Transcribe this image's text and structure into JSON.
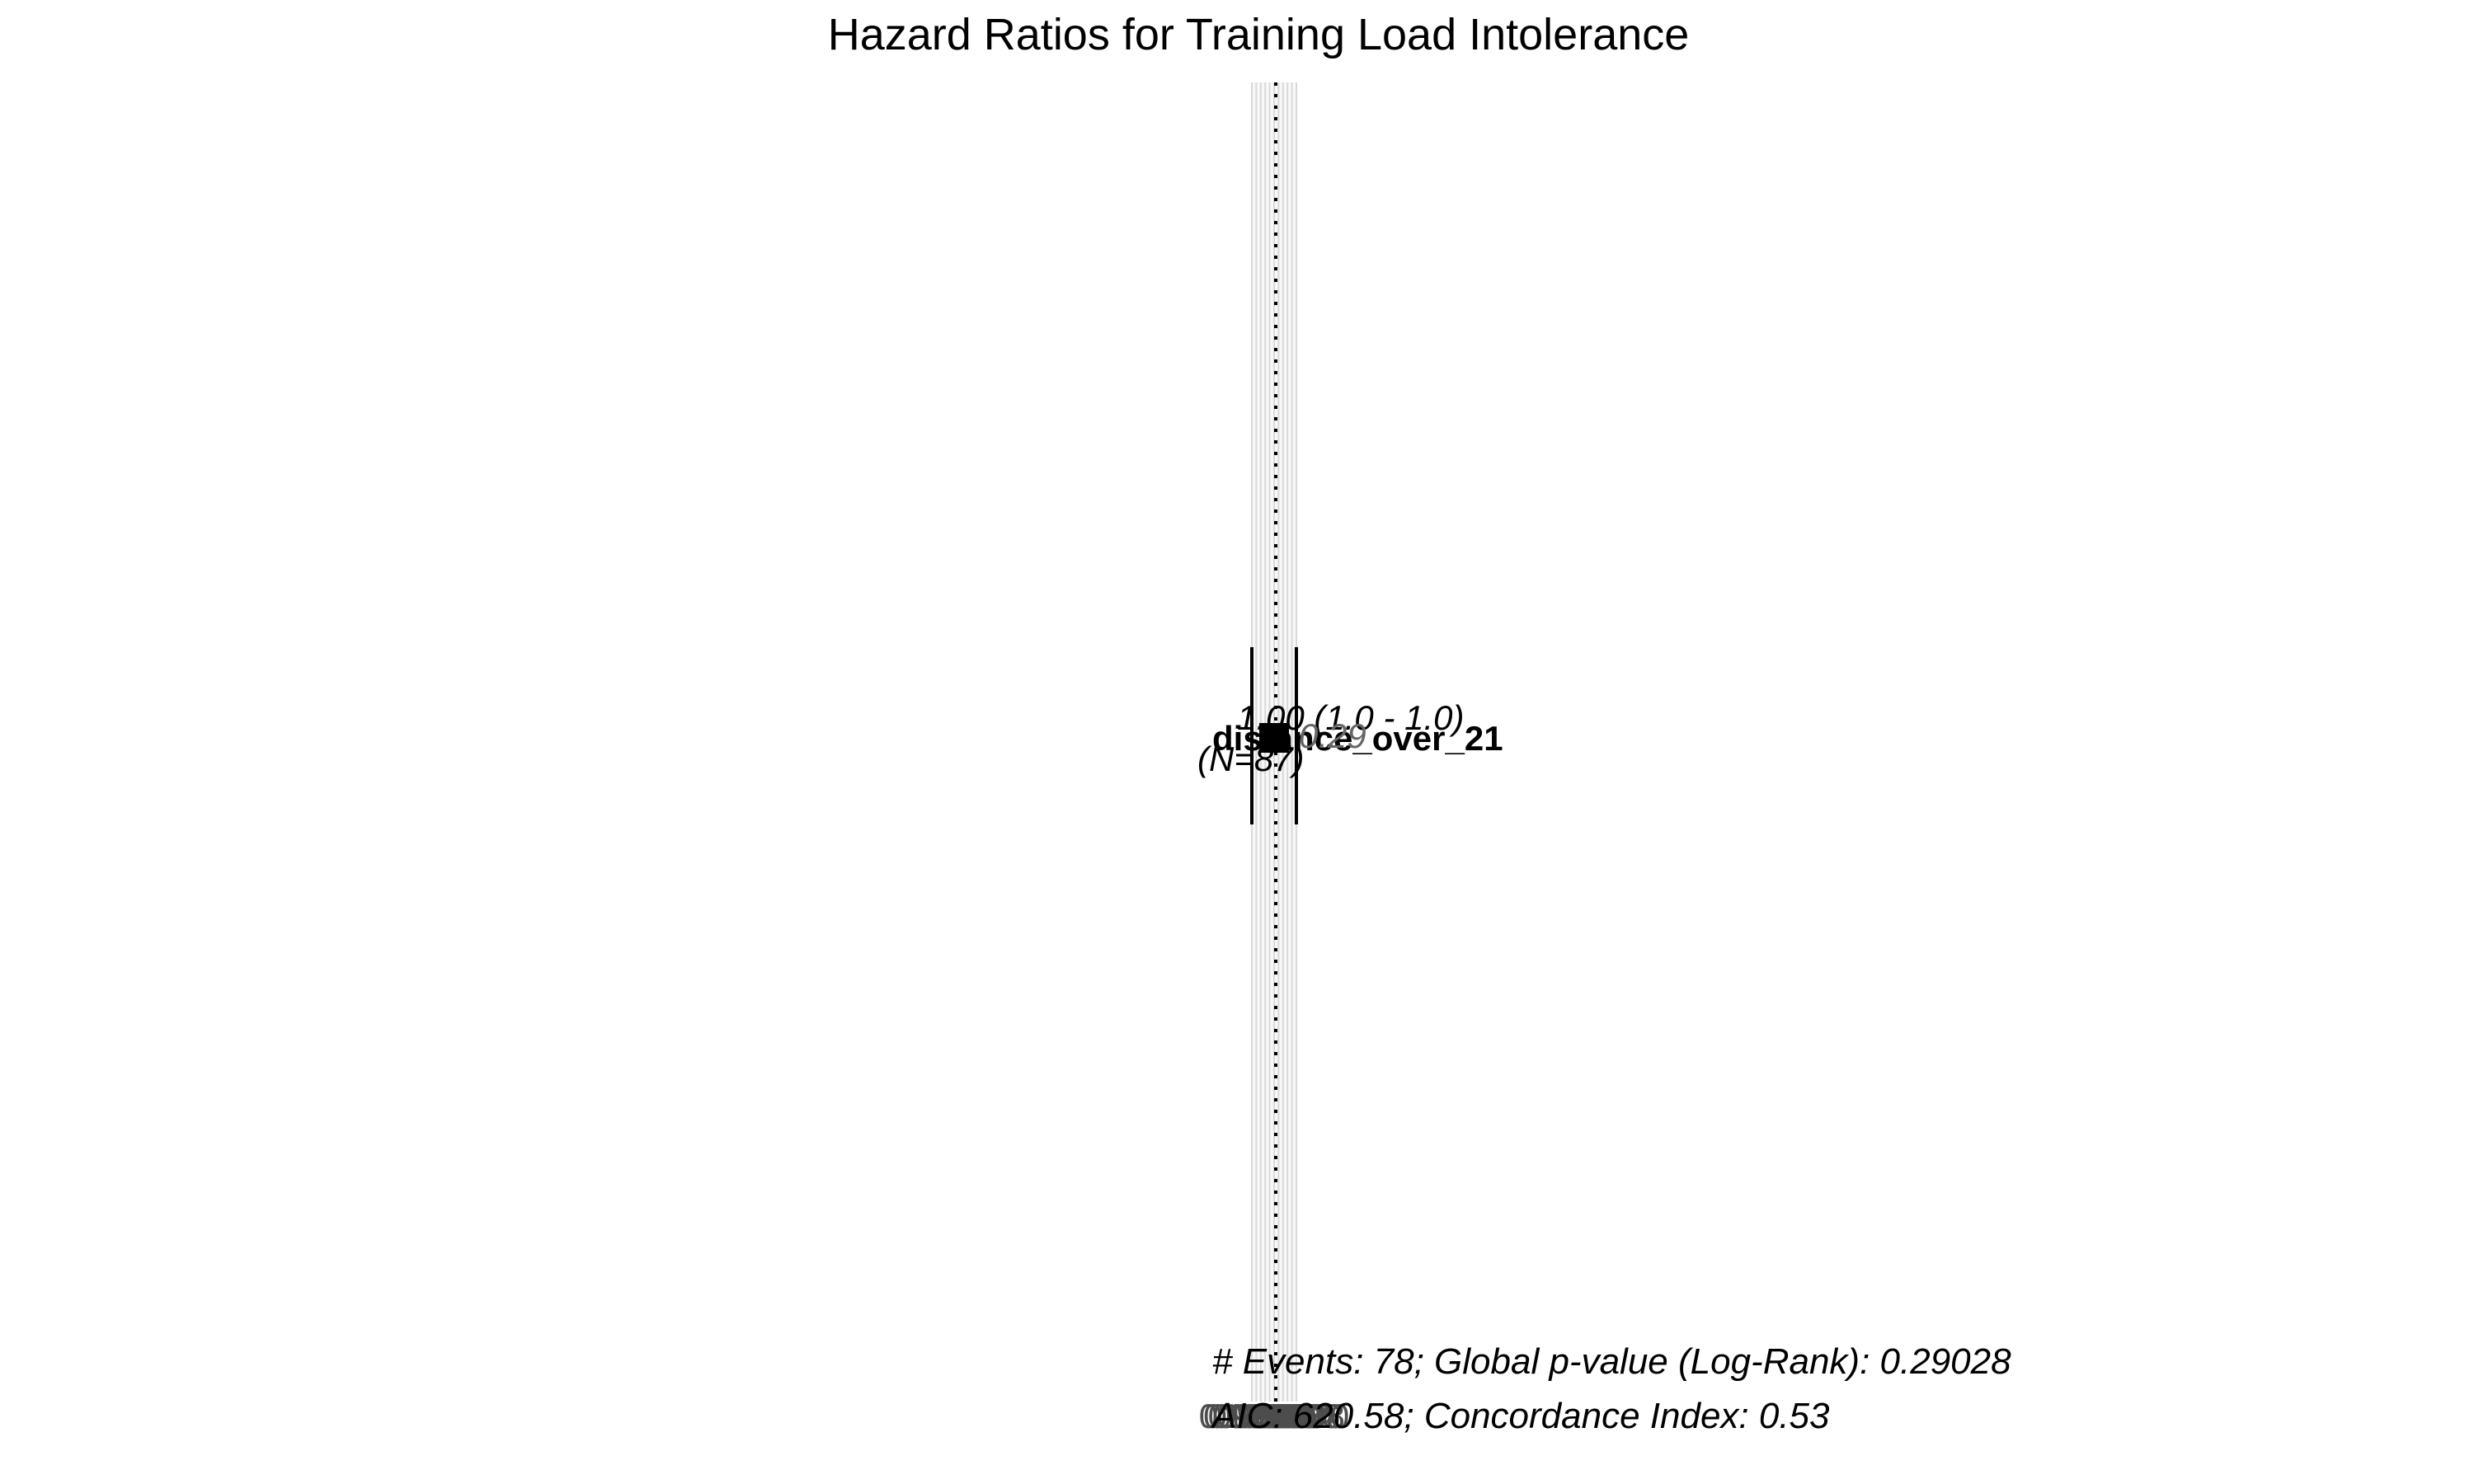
{
  "chart_data": {
    "type": "forest",
    "title": "Hazard Ratios for Training Load Intolerance",
    "variables": [
      {
        "name": "distance_over_21",
        "reference": "(N=87)",
        "hazard_ratio": 1.0,
        "ci_low": 1.0,
        "ci_high": 1.0,
        "hr_ci_text": "1.00 (1.0 - 1.0)",
        "p_value_text": "0.29"
      }
    ],
    "x_axis": {
      "scale": "log",
      "reference_line": 1.0,
      "range": [
        0.999,
        1.001
      ],
      "tick_labels": [
        "0.9990",
        "0.9992",
        "0.9994",
        "0.9996",
        "0.9998",
        "1.0000",
        "1.0002",
        "1.0004",
        "1.0006",
        "1.0008",
        "1.0010"
      ]
    },
    "footer_lines": [
      "# Events: 78; Global p-value (Log-Rank): 0.29028",
      "AIC: 620.58; Concordance Index: 0.53"
    ]
  }
}
